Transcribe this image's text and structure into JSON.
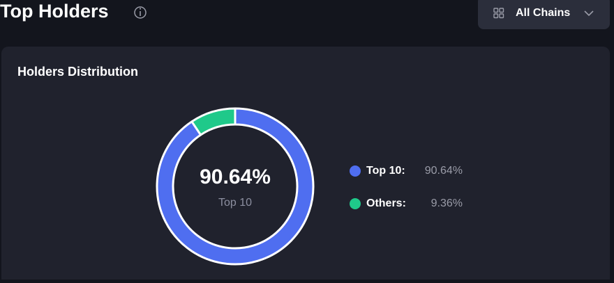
{
  "header": {
    "title": "Top Holders",
    "filter": "All Chains"
  },
  "card": {
    "title": "Holders Distribution"
  },
  "chart_data": {
    "type": "donut",
    "categories": [
      "Top 10",
      "Others"
    ],
    "legend_labels": [
      "Top 10:",
      "Others:"
    ],
    "values": [
      90.64,
      9.36
    ],
    "value_labels": [
      "90.64%",
      "9.36%"
    ],
    "colors": [
      "#4f6ef0",
      "#1fc98a"
    ]
  }
}
